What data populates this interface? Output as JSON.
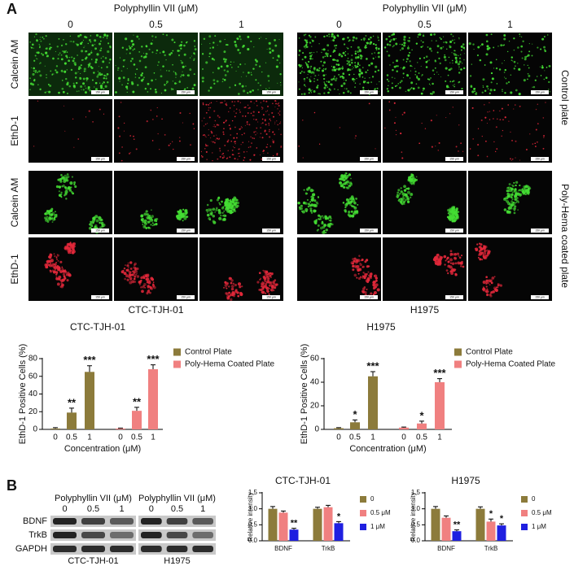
{
  "panel_a": {
    "label": "A",
    "groups": [
      {
        "header": "Polyphyllin VII (μM)",
        "concentrations": [
          "0",
          "0.5",
          "1"
        ],
        "cell_line": "CTC-TJH-01"
      },
      {
        "header": "Polyphyllin VII (μM)",
        "concentrations": [
          "0",
          "0.5",
          "1"
        ],
        "cell_line": "H1975"
      }
    ],
    "rows": [
      "Calcein AM",
      "EthD-1",
      "Calcein AM",
      "EthD-1"
    ],
    "conditions": [
      "Control plate",
      "Poly-Hema coated plate"
    ],
    "scale_bar": "150 μm"
  },
  "chart_data": [
    {
      "type": "bar",
      "title": "CTC-TJH-01",
      "ylabel": "EthD-1 Positive Cells (%)",
      "xlabel": "Concentration (μM)",
      "categories": [
        "0",
        "0.5",
        "1",
        "0",
        "0.5",
        "1"
      ],
      "ylim": [
        0,
        80
      ],
      "yticks": [
        0,
        20,
        40,
        60,
        80
      ],
      "legend": "upper right",
      "series": [
        {
          "name": "Control Plate",
          "color": "#8c7b3b",
          "values": [
            1,
            19,
            65,
            null,
            null,
            null
          ],
          "errors": [
            1,
            5,
            7,
            null,
            null,
            null
          ],
          "annotations": [
            null,
            "**",
            "***",
            null,
            null,
            null
          ]
        },
        {
          "name": "Poly-Hema Coated Plate",
          "color": "#f08080",
          "values": [
            null,
            null,
            null,
            1,
            21,
            68
          ],
          "errors": [
            null,
            null,
            null,
            0.5,
            4,
            5
          ],
          "annotations": [
            null,
            null,
            null,
            null,
            "**",
            "***"
          ]
        }
      ]
    },
    {
      "type": "bar",
      "title": "H1975",
      "ylabel": "EthD-1 Positive Cells (%)",
      "xlabel": "Concentration (μM)",
      "categories": [
        "0",
        "0.5",
        "1",
        "0",
        "0.5",
        "1"
      ],
      "ylim": [
        0,
        60
      ],
      "yticks": [
        0,
        20,
        40,
        60
      ],
      "legend": "upper right",
      "series": [
        {
          "name": "Control Plate",
          "color": "#8c7b3b",
          "values": [
            1,
            6,
            45,
            null,
            null,
            null
          ],
          "errors": [
            0.5,
            2,
            4,
            null,
            null,
            null
          ],
          "annotations": [
            null,
            "*",
            "***",
            null,
            null,
            null
          ]
        },
        {
          "name": "Poly-Hema Coated Plate",
          "color": "#f08080",
          "values": [
            null,
            null,
            null,
            1.5,
            5,
            40
          ],
          "errors": [
            null,
            null,
            null,
            0.5,
            2,
            3
          ],
          "annotations": [
            null,
            null,
            null,
            null,
            "*",
            "***"
          ]
        }
      ]
    },
    {
      "type": "bar",
      "title": "CTC-TJH-01",
      "ylabel": "Relative intensity",
      "categories": [
        "BDNF",
        "TrkB"
      ],
      "ylim": [
        0,
        1.5
      ],
      "yticks": [
        {
          "value": 0,
          "label": "0.0"
        },
        {
          "value": 0.5,
          "label": "0.5"
        },
        {
          "value": 1,
          "label": "1.0"
        },
        {
          "value": 1.5,
          "label": "1.5"
        }
      ],
      "legend": "upper right",
      "series": [
        {
          "name": "0",
          "color": "#8c7b3b",
          "values": [
            1.0,
            1.0
          ],
          "errors": [
            0.07,
            0.05
          ],
          "annotations": [
            null,
            null
          ]
        },
        {
          "name": "0.5 μM",
          "color": "#f08080",
          "values": [
            0.88,
            1.05
          ],
          "errors": [
            0.05,
            0.06
          ],
          "annotations": [
            null,
            null
          ]
        },
        {
          "name": "1 μM",
          "color": "#1f1fe0",
          "values": [
            0.35,
            0.55
          ],
          "errors": [
            0.04,
            0.05
          ],
          "annotations": [
            "**",
            "*"
          ]
        }
      ]
    },
    {
      "type": "bar",
      "title": "H1975",
      "ylabel": "Relative intensity",
      "categories": [
        "BDNF",
        "TrkB"
      ],
      "ylim": [
        0,
        1.5
      ],
      "yticks": [
        {
          "value": 0,
          "label": "0.0"
        },
        {
          "value": 0.5,
          "label": "0.5"
        },
        {
          "value": 1,
          "label": "1.0"
        },
        {
          "value": 1.5,
          "label": "1.5"
        }
      ],
      "legend": "upper right",
      "series": [
        {
          "name": "0",
          "color": "#8c7b3b",
          "values": [
            1.0,
            1.0
          ],
          "errors": [
            0.07,
            0.06
          ],
          "annotations": [
            null,
            null
          ]
        },
        {
          "name": "0.5 μM",
          "color": "#f08080",
          "values": [
            0.72,
            0.6
          ],
          "errors": [
            0.06,
            0.08
          ],
          "annotations": [
            null,
            "*"
          ]
        },
        {
          "name": "1 μM",
          "color": "#1f1fe0",
          "values": [
            0.3,
            0.48
          ],
          "errors": [
            0.04,
            0.05
          ],
          "annotations": [
            "**",
            "*"
          ]
        }
      ]
    }
  ],
  "panel_b": {
    "label": "B",
    "blots": [
      {
        "header": "Polyphyllin VII (μM)",
        "concentrations": [
          "0",
          "0.5",
          "1"
        ],
        "cell_line": "CTC-TJH-01"
      },
      {
        "header": "Polyphyllin VII (μM)",
        "concentrations": [
          "0",
          "0.5",
          "1"
        ],
        "cell_line": "H1975"
      }
    ],
    "proteins": [
      "BDNF",
      "TrkB",
      "GAPDH"
    ]
  }
}
